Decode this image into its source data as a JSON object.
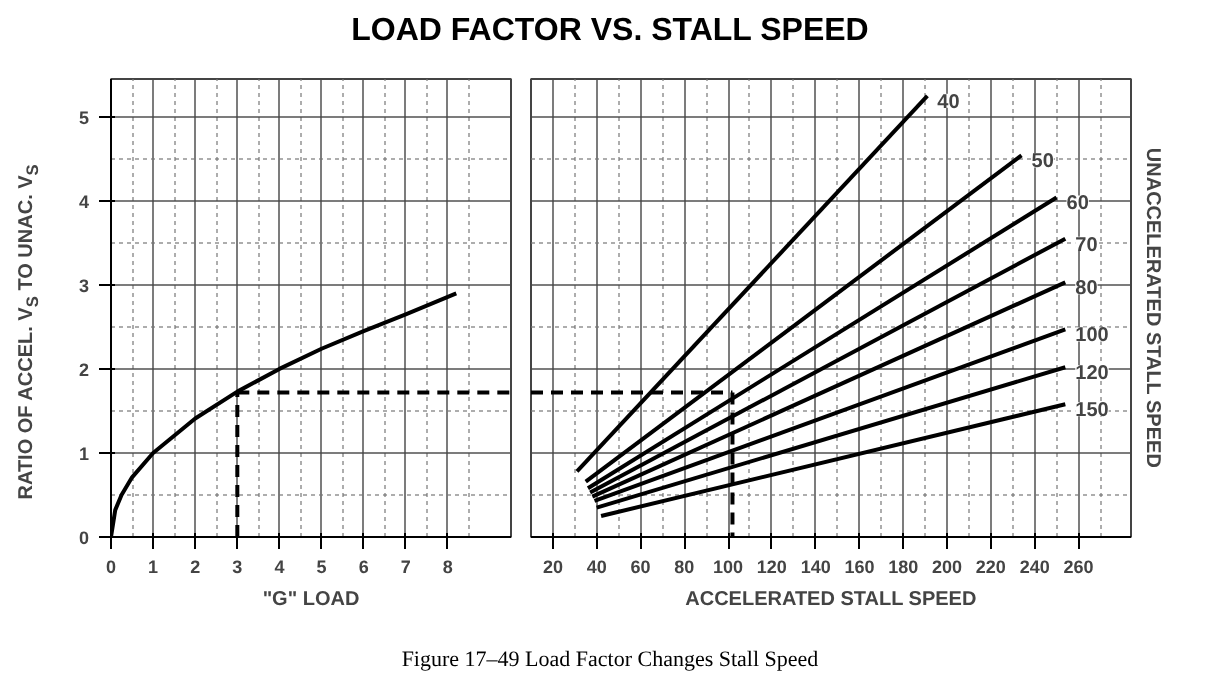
{
  "chart_data": [
    {
      "type": "line",
      "title": "LOAD FACTOR VS. STALL SPEED",
      "xlabel": "\"G\" LOAD",
      "ylabel": "RATIO OF ACCEL. V$_{S}$ TO UNAC. V$_{S}$",
      "xlim": [
        0,
        9.5
      ],
      "ylim": [
        0,
        5.45
      ],
      "xticks": [
        0,
        1,
        2,
        3,
        4,
        5,
        6,
        7,
        8
      ],
      "yticks": [
        0,
        1,
        2,
        3,
        4,
        5
      ],
      "grid": true,
      "marker": "none",
      "line_style": "solid",
      "annotations": [
        "Figure 17–49  Load Factor Changes Stall Speed"
      ],
      "series": [
        {
          "color": "#000000",
          "x": [
            0,
            0.1,
            0.25,
            0.5,
            1,
            2,
            3,
            4,
            5,
            6,
            7,
            8.2
          ],
          "values": [
            0,
            0.32,
            0.5,
            0.71,
            1,
            1.41,
            1.73,
            2,
            2.24,
            2.45,
            2.65,
            2.9
          ]
        },
        {
          "color": "#000000",
          "line_style": "dashed",
          "x": [
            3,
            3
          ],
          "values": [
            0,
            1.72
          ]
        },
        {
          "color": "#000000",
          "line_style": "dashed",
          "x": [
            3,
            9.5
          ],
          "values": [
            1.72,
            1.72
          ]
        }
      ]
    },
    {
      "type": "line",
      "xlabel": "ACCELERATED STALL SPEED",
      "y2label": "UNACCELERATED STALL SPEED",
      "xlim": [
        10,
        284
      ],
      "ylim": [
        0,
        5.45
      ],
      "xticks": [
        20,
        40,
        60,
        80,
        100,
        120,
        140,
        160,
        180,
        200,
        220,
        240,
        260
      ],
      "yticks": [
        0,
        1,
        2,
        3,
        4,
        5
      ],
      "tick_labels": "x",
      "grid": true,
      "marker": "none",
      "line_style": "solid",
      "series": [
        {
          "name": "40",
          "color": "#000000",
          "x": [
            31,
            191
          ],
          "values": [
            0.78,
            5.25
          ]
        },
        {
          "name": "50",
          "color": "#000000",
          "x": [
            35,
            234
          ],
          "values": [
            0.66,
            4.54
          ]
        },
        {
          "name": "60",
          "color": "#000000",
          "x": [
            36,
            250
          ],
          "values": [
            0.58,
            4.04
          ]
        },
        {
          "name": "70",
          "color": "#000000",
          "x": [
            37,
            254
          ],
          "values": [
            0.53,
            3.55
          ]
        },
        {
          "name": "80",
          "color": "#000000",
          "x": [
            38,
            254
          ],
          "values": [
            0.48,
            3.03
          ]
        },
        {
          "name": "100",
          "color": "#000000",
          "x": [
            39,
            254
          ],
          "values": [
            0.43,
            2.47
          ]
        },
        {
          "name": "120",
          "color": "#000000",
          "x": [
            40,
            254
          ],
          "values": [
            0.35,
            2.02
          ]
        },
        {
          "name": "150",
          "color": "#000000",
          "x": [
            42,
            254
          ],
          "values": [
            0.25,
            1.58
          ]
        },
        {
          "color": "#000000",
          "line_style": "dashed",
          "x": [
            10,
            102
          ],
          "values": [
            1.72,
            1.72
          ]
        },
        {
          "color": "#000000",
          "line_style": "dashed",
          "x": [
            102,
            102
          ],
          "values": [
            1.72,
            0
          ]
        }
      ]
    }
  ]
}
